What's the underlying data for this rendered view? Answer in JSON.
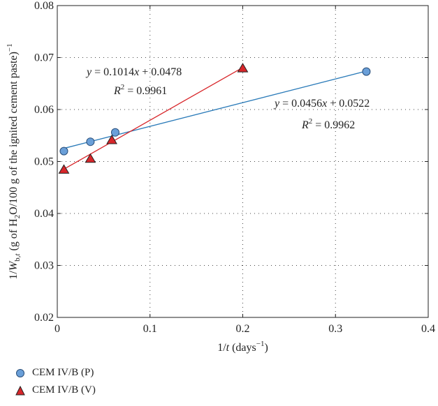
{
  "chart_data": {
    "type": "scatter",
    "xlim": [
      0,
      0.4
    ],
    "ylim": [
      0.02,
      0.08
    ],
    "xticks": [
      "0",
      "0.1",
      "0.2",
      "0.3",
      "0.4"
    ],
    "yticks": [
      "0.02",
      "0.03",
      "0.04",
      "0.05",
      "0.06",
      "0.07",
      "0.08"
    ],
    "xlabel": "1/t (days⁻¹)",
    "ylabel": "1/W_b,t (g of H₂O/100 g of the ignited cement paste)⁻¹",
    "grid": "dotted",
    "legend_position": "bottom-left",
    "series": [
      {
        "name": "CEM IV/B (P)",
        "marker": "circle",
        "color": "#6a9fd8",
        "line_color": "#2b7bb9",
        "x": [
          0.00714,
          0.0357,
          0.0625,
          0.3333
        ],
        "y": [
          0.052,
          0.0538,
          0.0556,
          0.0673
        ],
        "fit": {
          "slope": 0.0456,
          "intercept": 0.0522
        },
        "equation_parts": [
          "y",
          " = 0.0456",
          "x",
          " + 0.0522"
        ],
        "r2_parts": [
          "R",
          "2",
          " = 0.9962"
        ]
      },
      {
        "name": "CEM IV/B (V)",
        "marker": "triangle",
        "color": "#d8262a",
        "line_color": "#d8262a",
        "x": [
          0.00714,
          0.0357,
          0.0588,
          0.2
        ],
        "y": [
          0.0484,
          0.0505,
          0.0541,
          0.0679
        ],
        "fit": {
          "slope": 0.1014,
          "intercept": 0.0478
        },
        "equation_parts": [
          "y",
          " = 0.1014",
          "x",
          " + 0.0478"
        ],
        "r2_parts": [
          "R",
          "2",
          " = 0.9961"
        ]
      }
    ]
  }
}
